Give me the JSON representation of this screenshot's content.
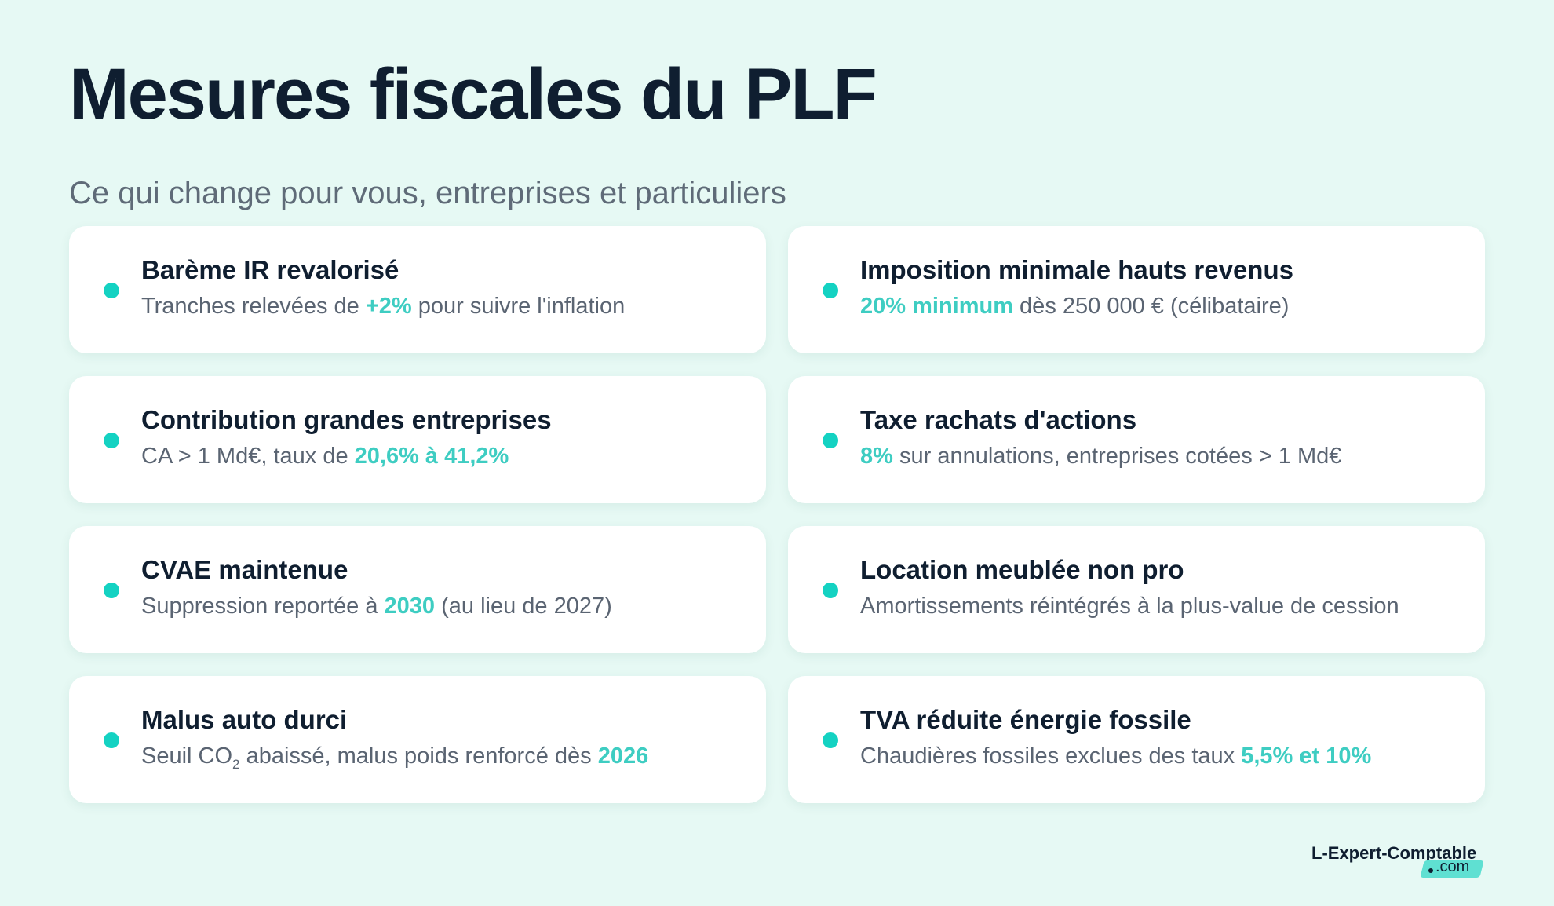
{
  "header": {
    "title": "Mesures fiscales du PLF",
    "subtitle": "Ce qui change pour vous, entreprises et particuliers"
  },
  "cards": [
    {
      "title": "Barème IR revalorisé",
      "desc": [
        {
          "text": "Tranches relevées de ",
          "highlight": false
        },
        {
          "text": "+2%",
          "highlight": true
        },
        {
          "text": " pour suivre l'inflation",
          "highlight": false
        }
      ]
    },
    {
      "title": "Imposition minimale hauts revenus",
      "desc": [
        {
          "text": "20% minimum",
          "highlight": true
        },
        {
          "text": " dès 250 000 € (célibataire)",
          "highlight": false
        }
      ]
    },
    {
      "title": "Contribution grandes entreprises",
      "desc": [
        {
          "text": "CA > 1 Md€, taux de ",
          "highlight": false
        },
        {
          "text": "20,6% à 41,2%",
          "highlight": true
        }
      ]
    },
    {
      "title": "Taxe rachats d'actions",
      "desc": [
        {
          "text": "8%",
          "highlight": true
        },
        {
          "text": " sur annulations, entreprises cotées > 1 Md€",
          "highlight": false
        }
      ]
    },
    {
      "title": "CVAE maintenue",
      "desc": [
        {
          "text": "Suppression reportée à ",
          "highlight": false
        },
        {
          "text": "2030",
          "highlight": true
        },
        {
          "text": " (au lieu de 2027)",
          "highlight": false
        }
      ]
    },
    {
      "title": "Location meublée non pro",
      "desc": [
        {
          "text": "Amortissements réintégrés à la plus-value de cession",
          "highlight": false
        }
      ]
    },
    {
      "title": "Malus auto durci",
      "desc": [
        {
          "text": "Seuil CO",
          "highlight": false
        },
        {
          "text": "2",
          "highlight": false,
          "subscript": true
        },
        {
          "text": " abaissé, malus poids renforcé dès ",
          "highlight": false
        },
        {
          "text": "2026",
          "highlight": true
        }
      ]
    },
    {
      "title": "TVA réduite énergie fossile",
      "desc": [
        {
          "text": "Chaudières fossiles exclues des taux ",
          "highlight": false
        },
        {
          "text": "5,5% et 10%",
          "highlight": true
        }
      ]
    }
  ],
  "logo": {
    "name": "L-Expert-Comptable",
    "extension": ".com"
  },
  "colors": {
    "background": "#e6f9f4",
    "accent": "#3ecdc2",
    "bullet": "#14d2c2",
    "title_text": "#0f1e30",
    "body_text": "#5a6472"
  }
}
